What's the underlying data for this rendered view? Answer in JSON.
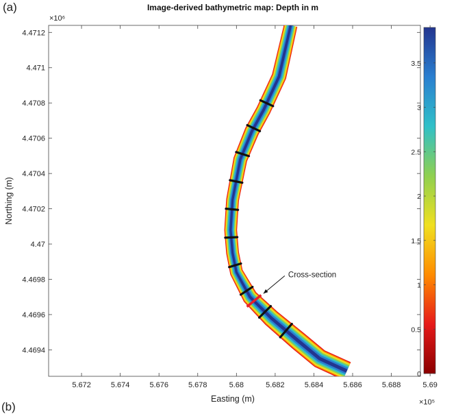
{
  "panel_label": "(a)",
  "next_panel_label": "(b)",
  "chart_data": {
    "type": "heatmap",
    "title": "Image-derived bathymetric map: Depth in m",
    "xlabel": "Easting (m)",
    "ylabel": "Northing (m)",
    "x_exponent_label": "×10⁵",
    "y_exponent_label": "×10⁶",
    "xlim": [
      5.6703,
      5.6895
    ],
    "ylim": [
      4.46925,
      4.47124
    ],
    "x_ticks": [
      5.672,
      5.674,
      5.676,
      5.678,
      5.68,
      5.682,
      5.684,
      5.686,
      5.688,
      5.69
    ],
    "x_tick_labels": [
      "5.672",
      "5.674",
      "5.676",
      "5.678",
      "5.68",
      "5.682",
      "5.684",
      "5.686",
      "5.688",
      "5.69"
    ],
    "y_ticks": [
      4.4694,
      4.4696,
      4.4698,
      4.47,
      4.4702,
      4.4704,
      4.4706,
      4.4708,
      4.471,
      4.4712
    ],
    "y_tick_labels": [
      "4.4694",
      "4.4696",
      "4.4698",
      "4.47",
      "4.4702",
      "4.4704",
      "4.4706",
      "4.4708",
      "4.471",
      "4.4712"
    ],
    "colorbar": {
      "label": "Depth in m",
      "range": [
        0,
        3.9
      ],
      "ticks": [
        0,
        0.5,
        1,
        1.5,
        2,
        2.5,
        3,
        3.5
      ],
      "tick_labels": [
        "0",
        "0.5",
        "1",
        "1.5",
        "2",
        "2.5",
        "3",
        "3.5"
      ],
      "colormap": "jet-reversed",
      "colors": [
        "#8b0000",
        "#e61a1a",
        "#ff8c00",
        "#f0e020",
        "#8fd050",
        "#30c0c8",
        "#2a7fd0",
        "#23358f"
      ]
    },
    "channel_centerline": [
      [
        5.6828,
        4.47124
      ],
      [
        5.6822,
        4.47095
      ],
      [
        5.6814,
        4.47076
      ],
      [
        5.6808,
        4.47064
      ],
      [
        5.6802,
        4.47048
      ],
      [
        5.6798,
        4.47025
      ],
      [
        5.6797,
        4.47008
      ],
      [
        5.6798,
        4.46995
      ],
      [
        5.68,
        4.46984
      ],
      [
        5.6807,
        4.4697
      ],
      [
        5.6818,
        4.46958
      ],
      [
        5.6832,
        4.46945
      ],
      [
        5.6843,
        4.46935
      ],
      [
        5.6857,
        4.46928
      ]
    ],
    "channel_halfwidth": [
      0.00035,
      0.00038,
      0.00038,
      0.00038,
      0.00036,
      0.00033,
      0.00033,
      0.00033,
      0.00034,
      0.0004,
      0.00046,
      0.0005,
      0.0005,
      0.0005
    ],
    "transects_count": 10,
    "annotation": {
      "text": "Cross-section",
      "point": [
        5.6813,
        4.46972
      ],
      "arrow_from": [
        5.6826,
        4.46982
      ]
    }
  }
}
